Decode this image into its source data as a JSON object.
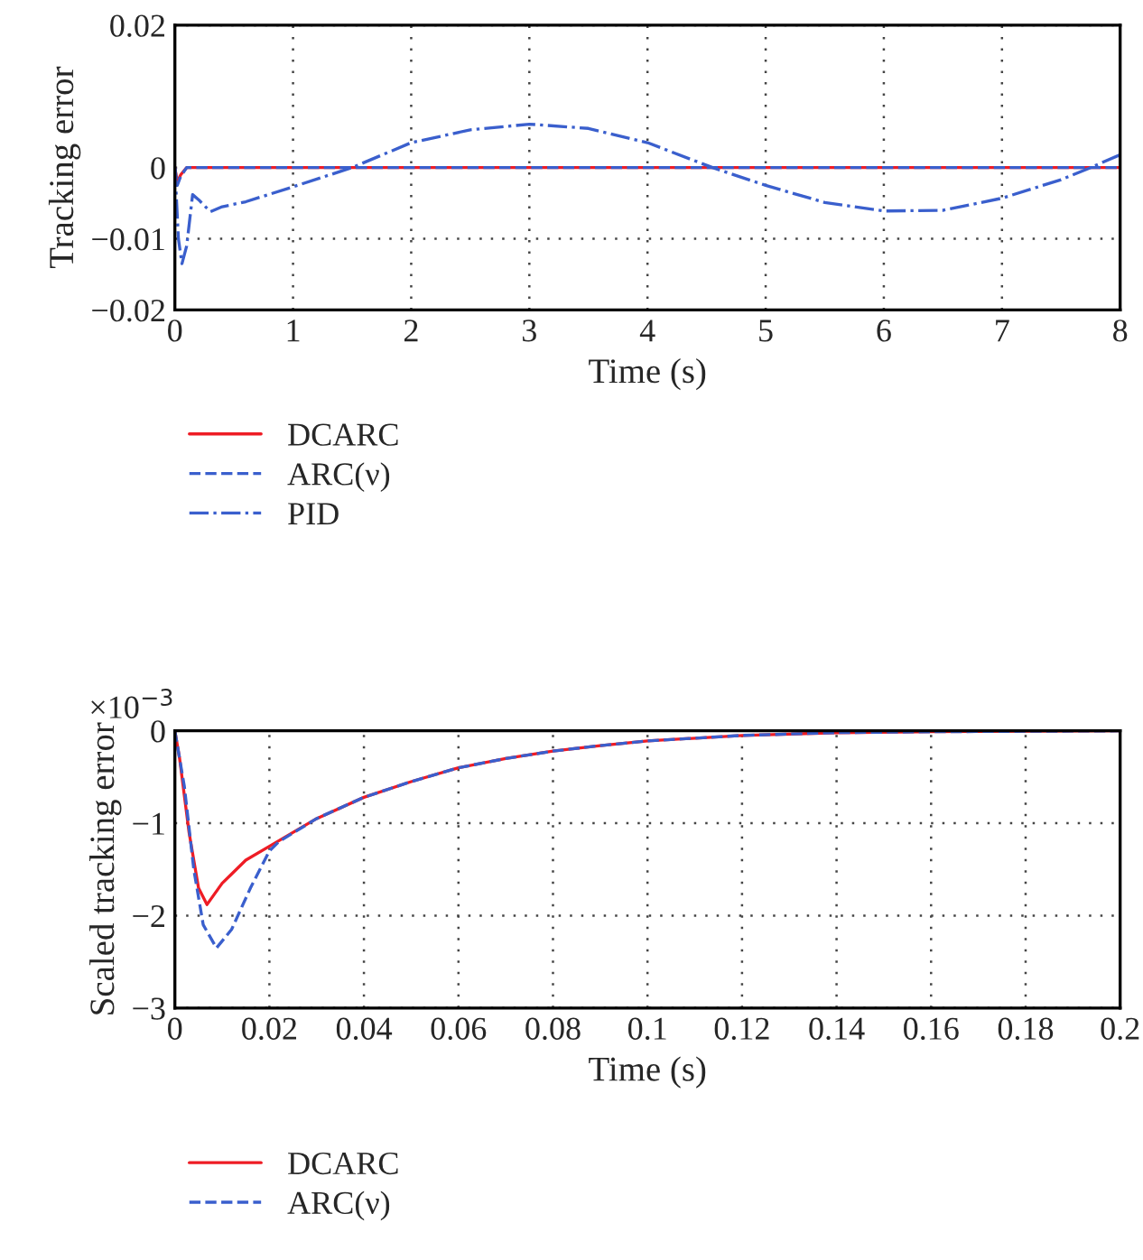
{
  "chart_data": [
    {
      "type": "line",
      "xlabel": "Time (s)",
      "ylabel": "Tracking error",
      "xlim": [
        0,
        8
      ],
      "xticks": [
        0,
        1,
        2,
        3,
        4,
        5,
        6,
        7,
        8
      ],
      "ylim": [
        -0.02,
        0.02
      ],
      "yticks": [
        {
          "value": -0.02,
          "label": "−0.02"
        },
        {
          "value": -0.01,
          "label": "−0.01"
        },
        0,
        0.02
      ],
      "grid": true,
      "legend": "bottom",
      "series": [
        {
          "name": "DCARC",
          "color": "#ee1c25",
          "line_style": "solid",
          "x": [
            0,
            0.02,
            0.05,
            0.1,
            0.2,
            1,
            2,
            3,
            4,
            5,
            6,
            7,
            8
          ],
          "values": [
            0,
            -0.002,
            -0.001,
            0,
            0,
            0,
            0,
            0,
            0,
            0,
            0,
            0,
            0
          ]
        },
        {
          "name": "ARC(ν)",
          "color": "#3a5fcd",
          "line_style": "dashed",
          "x": [
            0,
            0.02,
            0.05,
            0.1,
            0.2,
            1,
            2,
            3,
            4,
            5,
            6,
            7,
            8
          ],
          "values": [
            0,
            -0.0025,
            -0.0012,
            0,
            0,
            0,
            0,
            0,
            0,
            0,
            0,
            0,
            0
          ]
        },
        {
          "name": "PID",
          "color": "#3a5fcd",
          "line_style": "dashdot",
          "x": [
            0,
            0.03,
            0.06,
            0.1,
            0.15,
            0.2,
            0.3,
            0.4,
            0.6,
            1,
            1.5,
            2,
            2.5,
            3,
            3.5,
            4,
            4.55,
            5,
            5.5,
            6,
            6.5,
            7,
            7.5,
            7.75,
            8
          ],
          "values": [
            0,
            -0.01,
            -0.0135,
            -0.011,
            -0.0038,
            -0.0045,
            -0.0062,
            -0.0055,
            -0.0048,
            -0.0027,
            0,
            0.0035,
            0.0053,
            0.0061,
            0.0055,
            0.0035,
            0,
            -0.0025,
            -0.0049,
            -0.0061,
            -0.006,
            -0.0043,
            -0.0017,
            0,
            0.0018
          ]
        }
      ]
    },
    {
      "type": "line",
      "xlabel": "Time (s)",
      "ylabel": "Scaled tracking error",
      "annotations": [
        "×10$^{−3}$"
      ],
      "xlim": [
        0,
        0.2
      ],
      "xticks": [
        0,
        0.02,
        0.04,
        0.06,
        0.08,
        0.1,
        0.12,
        0.14,
        0.16,
        0.18,
        0.2
      ],
      "ylim": [
        -3,
        0
      ],
      "yticks": [
        {
          "value": -3,
          "label": "−3"
        },
        {
          "value": -2,
          "label": "−2"
        },
        {
          "value": -1,
          "label": "−1"
        },
        0
      ],
      "grid": true,
      "legend": "bottom",
      "series": [
        {
          "name": "DCARC",
          "color": "#ee1c25",
          "line_style": "solid",
          "x": [
            0,
            0.001,
            0.003,
            0.005,
            0.0068,
            0.01,
            0.015,
            0.02,
            0.03,
            0.04,
            0.05,
            0.06,
            0.07,
            0.08,
            0.09,
            0.1,
            0.12,
            0.14,
            0.16,
            0.2
          ],
          "values": [
            0,
            -0.3,
            -1.1,
            -1.7,
            -1.88,
            -1.65,
            -1.4,
            -1.25,
            -0.95,
            -0.72,
            -0.55,
            -0.4,
            -0.3,
            -0.22,
            -0.16,
            -0.11,
            -0.05,
            -0.02,
            -0.01,
            0
          ]
        },
        {
          "name": "ARC(ν)",
          "color": "#3a5fcd",
          "line_style": "dashed",
          "x": [
            0,
            0.002,
            0.004,
            0.006,
            0.0088,
            0.012,
            0.016,
            0.02,
            0.022,
            0.03,
            0.04,
            0.05,
            0.06,
            0.07,
            0.08,
            0.09,
            0.1,
            0.12,
            0.14,
            0.16,
            0.2
          ],
          "values": [
            0,
            -0.6,
            -1.5,
            -2.1,
            -2.35,
            -2.15,
            -1.7,
            -1.3,
            -1.2,
            -0.95,
            -0.72,
            -0.55,
            -0.4,
            -0.3,
            -0.22,
            -0.16,
            -0.11,
            -0.05,
            -0.02,
            -0.01,
            0
          ]
        }
      ]
    }
  ]
}
